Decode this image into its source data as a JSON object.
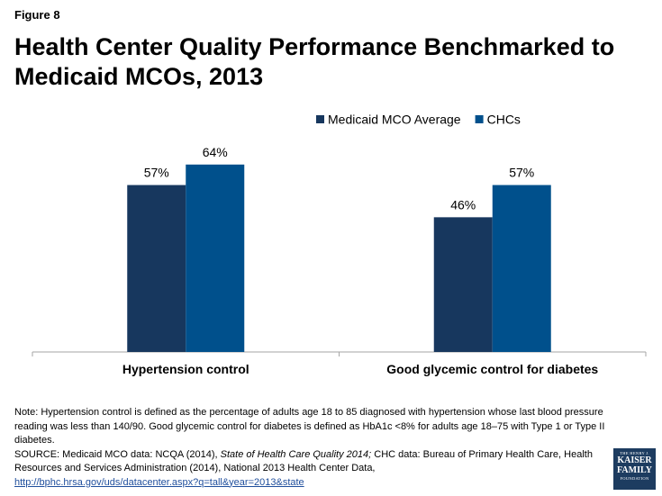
{
  "figure_label": "Figure 8",
  "title": "Health Center Quality Performance Benchmarked to Medicaid MCOs, 2013",
  "chart_data": {
    "type": "bar",
    "categories": [
      "Hypertension control",
      "Good glycemic control for diabetes"
    ],
    "series": [
      {
        "name": "Medicaid MCO Average",
        "values": [
          57,
          46
        ],
        "labels": [
          "57%",
          "46%"
        ],
        "color": "#17375e"
      },
      {
        "name": "CHCs",
        "values": [
          64,
          57
        ],
        "labels": [
          "64%",
          "57%"
        ],
        "color": "#00508c"
      }
    ],
    "ylim": [
      0,
      75
    ],
    "legend_position": "top-right",
    "grid": false
  },
  "notes": {
    "note": "Note: Hypertension control is defined as the percentage of adults age 18 to 85 diagnosed with hypertension whose last blood pressure reading was less than 140/90. Good glycemic control for diabetes is defined as HbA1c <8% for adults age 18–75 with Type 1 or Type II diabetes.",
    "source_prefix": "SOURCE: Medicaid MCO data: NCQA (2014), ",
    "source_italic": "State of Health Care Quality 2014;",
    "source_suffix": " CHC data: Bureau of Primary Health Care, Health Resources and Services Administration (2014), National 2013 Health Center Data,",
    "link": "http://bphc.hrsa.gov/uds/datacenter.aspx?q=tall&year=2013&state"
  },
  "logo": {
    "line1": "THE HENRY J.",
    "line2": "KAISER",
    "line3": "FAMILY",
    "line4": "FOUNDATION"
  }
}
